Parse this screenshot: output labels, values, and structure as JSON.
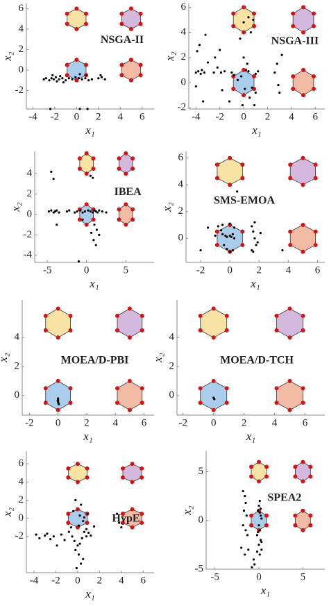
{
  "chart_data": [
    {
      "type": "scatter",
      "title": "NSGA-II",
      "xlabel": "x₁",
      "ylabel": "x₂",
      "xlim": [
        -4.6,
        7.1
      ],
      "ylim": [
        -3.8,
        6.5
      ],
      "xticks": [
        -4,
        -2,
        0,
        2,
        4,
        6
      ],
      "yticks": [
        -2,
        0,
        2,
        4,
        6
      ],
      "point_color": "#000000",
      "hexagons": {
        "x": [
          0,
          5,
          0,
          5
        ],
        "y": [
          0,
          0,
          5,
          5
        ],
        "radius": 1,
        "colors": [
          "#a9cdea",
          "#f2bba6",
          "#f8e2a4",
          "#d4b8de"
        ]
      },
      "x": [
        -3,
        -2.8,
        -2.5,
        -2.3,
        -2.1,
        -1.9,
        -1.6,
        -1.3,
        -1.0,
        -0.7,
        -0.4,
        -0.1,
        0.2,
        0.5,
        0.8,
        1.1,
        1.4,
        2.0,
        2.3,
        2.6,
        -2.2,
        -1.5,
        0.3,
        0.9,
        2.2,
        -2.4,
        0.3,
        1.0,
        -1.8,
        -1.2
      ],
      "y": [
        -0.9,
        -0.8,
        -1.0,
        -0.8,
        -0.9,
        -0.7,
        -0.9,
        -0.8,
        -1.0,
        -0.8,
        -0.9,
        -0.7,
        -0.8,
        -0.9,
        -0.8,
        -1.0,
        -0.9,
        -0.8,
        -0.7,
        -0.9,
        -0.5,
        -0.6,
        -0.4,
        -0.5,
        -0.5,
        -3.8,
        -3.8,
        -3.8,
        -1.1,
        -1.2
      ]
    },
    {
      "type": "scatter",
      "title": "NSGA-III",
      "xlabel": "x₁",
      "ylabel": "x₂",
      "xlim": [
        -4.6,
        6.8
      ],
      "ylim": [
        -2.1,
        6.3
      ],
      "xticks": [
        -4,
        -2,
        0,
        2,
        4,
        6
      ],
      "yticks": [
        -2,
        0,
        2,
        4,
        6
      ],
      "point_color": "#000000",
      "hexagons": {
        "x": [
          0,
          5,
          0,
          5
        ],
        "y": [
          0,
          0,
          5,
          5
        ],
        "radius": 1,
        "colors": [
          "#a9cdea",
          "#f2bba6",
          "#f8e2a4",
          "#d4b8de"
        ]
      },
      "x": [
        -4,
        -3.8,
        -3.6,
        -3.5,
        -3.3,
        -3.9,
        -3.7,
        -3.2,
        -2.5,
        -2.4,
        -2.2,
        -1.9,
        -2.0,
        -1.6,
        -1.0,
        -0.8,
        -0.5,
        -0.3,
        0,
        0.2,
        0.4,
        0.6,
        0.8,
        1.0,
        1.2,
        0.1,
        0.5,
        -0.1,
        0.3,
        1.0,
        2.6,
        2.9,
        3.0,
        3.2,
        -4,
        -3.4,
        -1.8,
        -0.2,
        0.7,
        2.8,
        -3.0,
        -1.2,
        0.9,
        0.0,
        0.4
      ],
      "y": [
        0.8,
        0.9,
        0.7,
        1.0,
        0.8,
        2.5,
        3.0,
        3.8,
        0.8,
        2.0,
        1.2,
        0.8,
        2.6,
        0.9,
        0.8,
        0.6,
        0.2,
        3.5,
        2.0,
        1.0,
        0.9,
        4.0,
        5.0,
        0.7,
        0.9,
        -0.5,
        -1.2,
        -1.8,
        1.5,
        -0.8,
        0.8,
        -0.2,
        -0.8,
        2.2,
        -0.3,
        -1.5,
        -0.6,
        0.5,
        -0.4,
        1.5,
        1.6,
        -1.5,
        -1.8,
        4.8,
        5.2
      ]
    },
    {
      "type": "scatter",
      "title": "IBEA",
      "xlabel": "x₁",
      "ylabel": "x₂",
      "xlim": [
        -6.6,
        8.6
      ],
      "ylim": [
        -4.7,
        6.2
      ],
      "xticks": [
        -5,
        0,
        5
      ],
      "yticks": [
        -4,
        -2,
        0,
        2,
        4
      ],
      "point_color": "#000000",
      "hexagons": {
        "x": [
          0,
          5,
          0,
          5
        ],
        "y": [
          0,
          0,
          5,
          5
        ],
        "radius": 1,
        "colors": [
          "#a9cdea",
          "#f2bba6",
          "#f8e2a4",
          "#d4b8de"
        ]
      },
      "x": [
        -4.8,
        -4.5,
        -4.2,
        -4.0,
        -3.8,
        -3.5,
        -2.5,
        -2.2,
        -1.5,
        -1.2,
        -0.8,
        -0.5,
        -0.2,
        0.2,
        0.5,
        0.8,
        1.0,
        1.2,
        1.4,
        1.6,
        2.0,
        2.5,
        -4.5,
        -4.2,
        -3.8,
        -0.5,
        1.0,
        1.3,
        1.6,
        0.6,
        0.9,
        1.2,
        -1.0,
        0.5,
        0.8
      ],
      "y": [
        0.3,
        0.4,
        0.2,
        0.3,
        0.4,
        0.2,
        0.3,
        0.4,
        0.2,
        0.3,
        0.4,
        0.2,
        0.3,
        0.4,
        0.3,
        0.2,
        0.4,
        0.3,
        0.2,
        0.4,
        0.3,
        0.2,
        4.2,
        3.5,
        -1.0,
        -0.5,
        -1.0,
        -1.5,
        -2.0,
        -1.8,
        -2.5,
        -3.0,
        -4.6,
        3.8,
        3.6
      ]
    },
    {
      "type": "scatter",
      "title": "SMS-EMOA",
      "xlabel": "x₁",
      "ylabel": "x₂",
      "xlim": [
        -3,
        6.5
      ],
      "ylim": [
        -1.8,
        6.5
      ],
      "xticks": [
        -2,
        0,
        2,
        4,
        6
      ],
      "yticks": [
        0,
        2,
        4,
        6
      ],
      "point_color": "#000000",
      "hexagons": {
        "x": [
          0,
          5,
          0,
          5
        ],
        "y": [
          0,
          0,
          5,
          5
        ],
        "radius": 1,
        "colors": [
          "#a9cdea",
          "#f2bba6",
          "#f8e2a4",
          "#d4b8de"
        ]
      },
      "x": [
        -2.0,
        -1.5,
        -1.0,
        -0.8,
        -0.6,
        -0.5,
        -0.3,
        -0.2,
        0,
        0.1,
        0.2,
        0.3,
        -0.4,
        -0.2,
        0.0,
        0.2,
        -0.5,
        0,
        0.3,
        1.5,
        1.6,
        1.7,
        1.8,
        1.5,
        1.7,
        1.9,
        1.6,
        3.6,
        0.5,
        2.1
      ],
      "y": [
        -0.9,
        0.8,
        0.2,
        0.9,
        0.6,
        0.3,
        0.2,
        0.1,
        0.2,
        0.1,
        0.3,
        0.0,
        -0.5,
        -0.8,
        -1.0,
        -0.9,
        1.0,
        1.1,
        0.8,
        0.9,
        0.5,
        0.0,
        -0.5,
        -0.9,
        1.2,
        -0.3,
        -1.0,
        -0.9,
        3.5,
        0.4
      ]
    },
    {
      "type": "scatter",
      "title": "MOEA/D-PBI",
      "xlabel": "x₁",
      "ylabel": "x₂",
      "xlim": [
        -2.5,
        6.7
      ],
      "ylim": [
        -1.35,
        6.6
      ],
      "xticks": [
        -2,
        0,
        2,
        4,
        6
      ],
      "yticks": [
        0,
        2,
        4
      ],
      "point_color": "#000000",
      "hexagons": {
        "x": [
          0,
          5,
          0,
          5
        ],
        "y": [
          0,
          0,
          5,
          5
        ],
        "radius": 1,
        "colors": [
          "#a9cdea",
          "#f2bba6",
          "#f8e2a4",
          "#d4b8de"
        ]
      },
      "x": [
        0,
        0,
        0,
        0.02,
        -0.02,
        0.05
      ],
      "y": [
        -0.2,
        -0.3,
        -0.4,
        -0.5,
        -0.35,
        -0.6
      ]
    },
    {
      "type": "scatter",
      "title": "MOEA/D-TCH",
      "xlabel": "x₁",
      "ylabel": "x₂",
      "xlim": [
        -2.4,
        7.3
      ],
      "ylim": [
        -1.35,
        6.6
      ],
      "xticks": [
        -2,
        0,
        2,
        4,
        6
      ],
      "yticks": [
        0,
        2,
        4
      ],
      "point_color": "#000000",
      "hexagons": {
        "x": [
          0,
          5,
          0,
          5
        ],
        "y": [
          0,
          0,
          5,
          5
        ],
        "radius": 1,
        "colors": [
          "#a9cdea",
          "#f2bba6",
          "#f8e2a4",
          "#d4b8de"
        ]
      },
      "x": [
        0,
        0.05
      ],
      "y": [
        -0.15,
        -0.25
      ]
    },
    {
      "type": "scatter",
      "title": "HypE",
      "xlabel": "x₁",
      "ylabel": "x₂",
      "xlim": [
        -4.7,
        7
      ],
      "ylim": [
        -6,
        7.4
      ],
      "xticks": [
        -4,
        -2,
        0,
        2,
        4,
        6
      ],
      "yticks": [
        -2,
        0,
        2,
        4,
        6
      ],
      "point_color": "#000000",
      "hexagons": {
        "x": [
          0,
          5,
          0,
          5
        ],
        "y": [
          0,
          0,
          5,
          5
        ],
        "radius": 1,
        "colors": [
          "#a9cdea",
          "#f2bba6",
          "#f8e2a4",
          "#d4b8de"
        ]
      },
      "x": [
        -3.8,
        -3.5,
        -3.0,
        -2.8,
        -2.5,
        -2.2,
        -1.5,
        -1.2,
        -0.8,
        -0.5,
        -0.3,
        0,
        0.2,
        0.4,
        0.6,
        0.8,
        1.0,
        1.2,
        -0.2,
        0.1,
        0.5,
        0.3,
        -0.1,
        0.2,
        0.6,
        0.9,
        -0.4,
        0.3,
        3.6,
        3.8,
        4.0,
        -1.9,
        -0.2,
        0.5,
        0.1,
        -0.6,
        0.8,
        1.5
      ],
      "y": [
        -1.8,
        -2.2,
        -1.9,
        -1.7,
        -2.3,
        -2.0,
        -1.8,
        -2.4,
        -1.5,
        -2.0,
        -2.5,
        -3.0,
        -2.8,
        -2.2,
        -1.5,
        -2.0,
        -1.6,
        -1.9,
        -3.5,
        -4.0,
        -4.5,
        -5.0,
        -5.5,
        0.3,
        0.1,
        0.5,
        0.8,
        1.5,
        0.5,
        -0.5,
        -1.0,
        -3.0,
        2.0,
        -0.3,
        -0.8,
        -1.0,
        -1.2,
        -0.9
      ]
    },
    {
      "type": "scatter",
      "title": "SPEA2",
      "xlabel": "x₁",
      "ylabel": "x₂",
      "xlim": [
        -6,
        7.5
      ],
      "ylim": [
        -5,
        7.1
      ],
      "xticks": [
        -5,
        0,
        5
      ],
      "yticks": [
        -5,
        0,
        5
      ],
      "point_color": "#000000",
      "hexagons": {
        "x": [
          0,
          5,
          0,
          5
        ],
        "y": [
          0,
          0,
          5,
          5
        ],
        "radius": 1,
        "colors": [
          "#a9cdea",
          "#f2bba6",
          "#f8e2a4",
          "#d4b8de"
        ]
      },
      "x": [
        -1.8,
        -1.6,
        -1.5,
        -1.7,
        -1.4,
        -1.8,
        -1.5,
        -1.3,
        -2.0,
        -1.6,
        0.1,
        0.0,
        -0.1,
        0.2,
        0.3,
        0.0,
        0.1,
        -0.2,
        0.2,
        0.0,
        0.3,
        0.1,
        -0.6,
        -0.5,
        -0.8,
        -1.2,
        0.1,
        0.2,
        -0.1,
        0.3,
        -0.2
      ],
      "y": [
        3.0,
        2.5,
        1.8,
        1.0,
        0.5,
        -0.5,
        -1.0,
        -1.5,
        -2.8,
        -3.5,
        2.0,
        1.5,
        1.0,
        0.5,
        0.2,
        -0.5,
        -1.0,
        -1.5,
        -2.0,
        -2.5,
        -3.0,
        -3.5,
        -4.0,
        -4.5,
        -4.8,
        -3.0,
        0.8,
        1.2,
        -1.2,
        -2.2,
        -3.2
      ]
    }
  ]
}
